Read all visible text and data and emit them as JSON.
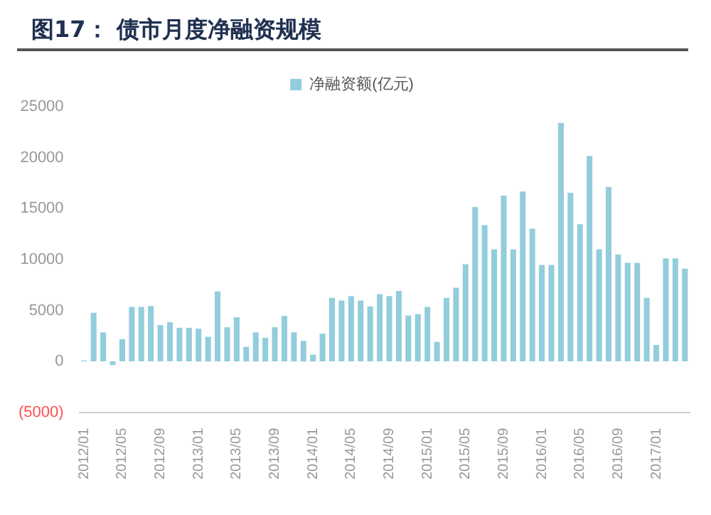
{
  "chart_data": {
    "type": "bar",
    "title": "图17：    债市月度净融资规模",
    "categories": [
      "2012/01",
      null,
      null,
      null,
      "2012/05",
      null,
      null,
      null,
      "2012/09",
      null,
      null,
      null,
      "2013/01",
      null,
      null,
      null,
      "2013/05",
      null,
      null,
      null,
      "2013/09",
      null,
      null,
      null,
      "2014/01",
      null,
      null,
      null,
      "2014/05",
      null,
      null,
      null,
      "2014/09",
      null,
      null,
      null,
      "2015/01",
      null,
      null,
      null,
      "2015/05",
      null,
      null,
      null,
      "2015/09",
      null,
      null,
      null,
      "2016/01",
      null,
      null,
      null,
      "2016/05",
      null,
      null,
      null,
      "2016/09",
      null,
      null,
      null,
      "2017/01",
      null,
      null,
      null
    ],
    "series": [
      {
        "name": "净融资额(亿元)",
        "color": "#92cddc",
        "values": [
          100,
          4770,
          2850,
          -360,
          2190,
          5350,
          5350,
          5440,
          3570,
          3840,
          3300,
          3300,
          3210,
          2410,
          6870,
          3350,
          4330,
          1430,
          2850,
          2320,
          3350,
          4460,
          2850,
          2010,
          670,
          2720,
          6240,
          5980,
          6420,
          5980,
          5400,
          6600,
          6420,
          6910,
          4500,
          4640,
          5350,
          1920,
          6240,
          7230,
          9540,
          15160,
          13380,
          11000,
          16280,
          11000,
          16680,
          13020,
          9460,
          9460,
          23410,
          16550,
          13470,
          20160,
          11000,
          17130,
          10500,
          9680,
          9680,
          6240,
          1610,
          10120,
          10120,
          9100
        ]
      }
    ],
    "ylim": [
      -5000,
      25000
    ],
    "yticks": [
      {
        "value": -5000,
        "label": "(5000)"
      },
      0,
      5000,
      10000,
      15000,
      20000,
      25000
    ],
    "grid": false,
    "legend": "top"
  }
}
